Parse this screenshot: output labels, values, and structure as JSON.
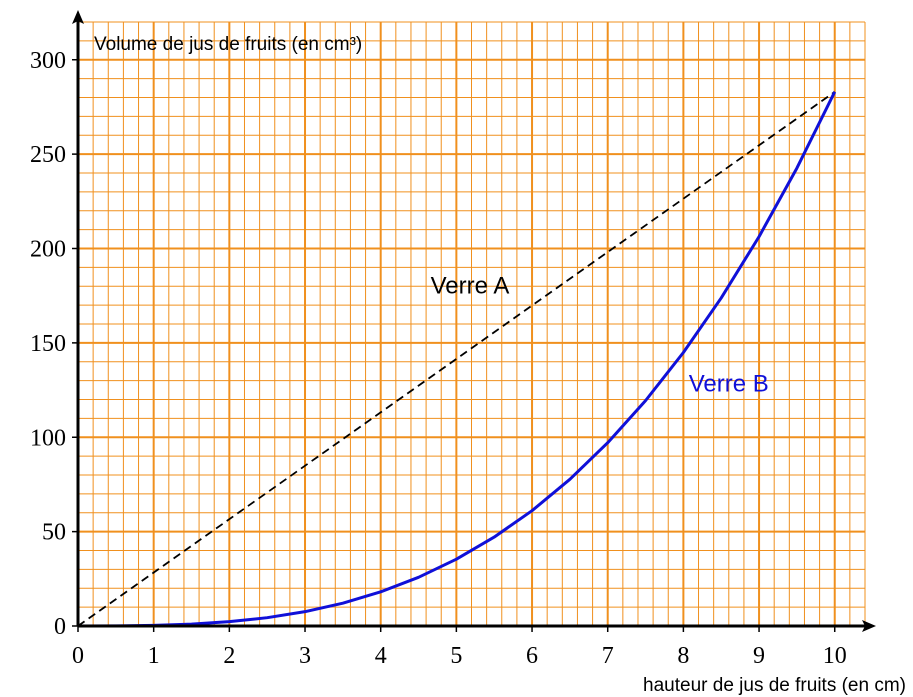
{
  "chart_data": {
    "type": "line",
    "ylabel": "Volume de jus de fruits (en cm³)",
    "xlabel": "hauteur de jus de fruits (en cm)",
    "xlim": [
      0,
      10.4
    ],
    "ylim": [
      0,
      320
    ],
    "xticks": [
      0,
      1,
      2,
      3,
      4,
      5,
      6,
      7,
      8,
      9,
      10
    ],
    "yticks": [
      0,
      50,
      100,
      150,
      200,
      250,
      300
    ],
    "grid": true,
    "grid_color": "#f0901e",
    "xminor": 0.2,
    "yminor": 10,
    "series": [
      {
        "name": "Verre A",
        "color": "#000000",
        "dashed": true,
        "x": [
          0,
          10
        ],
        "values": [
          0,
          283
        ]
      },
      {
        "name": "Verre B",
        "color": "#1010d8",
        "dashed": false,
        "x": [
          0,
          0.5,
          1,
          1.5,
          2,
          2.5,
          3,
          3.5,
          4,
          4.5,
          5,
          5.5,
          6,
          6.5,
          7,
          7.5,
          8,
          8.5,
          9,
          9.5,
          10
        ],
        "values": [
          0,
          0.04,
          0.3,
          1.0,
          2.3,
          4.4,
          7.6,
          12.1,
          18.1,
          25.8,
          35.4,
          47.1,
          61.1,
          77.7,
          97.1,
          119.4,
          144.9,
          173.8,
          206.3,
          242.6,
          283
        ]
      }
    ],
    "annotations": [
      {
        "text": "Verre A",
        "x": 5.18,
        "y": 181,
        "color": "#000000"
      },
      {
        "text": "Verre B",
        "x": 8.6,
        "y": 129,
        "color": "#1010d8"
      }
    ]
  }
}
